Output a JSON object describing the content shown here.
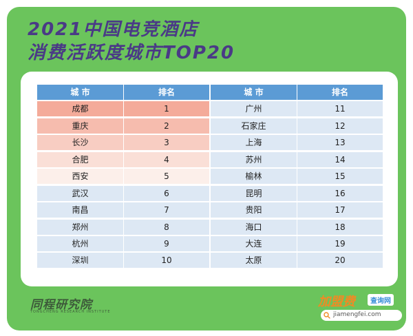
{
  "title": {
    "line1": "2021中国电竞酒店",
    "line2": "消费活跃度城市TOP20"
  },
  "table": {
    "headers": {
      "city": "城 市",
      "rank": "排名"
    },
    "left": [
      {
        "city": "成都",
        "rank": "1"
      },
      {
        "city": "重庆",
        "rank": "2"
      },
      {
        "city": "长沙",
        "rank": "3"
      },
      {
        "city": "合肥",
        "rank": "4"
      },
      {
        "city": "西安",
        "rank": "5"
      },
      {
        "city": "武汉",
        "rank": "6"
      },
      {
        "city": "南昌",
        "rank": "7"
      },
      {
        "city": "郑州",
        "rank": "8"
      },
      {
        "city": "杭州",
        "rank": "9"
      },
      {
        "city": "深圳",
        "rank": "10"
      }
    ],
    "right": [
      {
        "city": "广州",
        "rank": "11"
      },
      {
        "city": "石家庄",
        "rank": "12"
      },
      {
        "city": "上海",
        "rank": "13"
      },
      {
        "city": "苏州",
        "rank": "14"
      },
      {
        "city": "榆林",
        "rank": "15"
      },
      {
        "city": "昆明",
        "rank": "16"
      },
      {
        "city": "贵阳",
        "rank": "17"
      },
      {
        "city": "海口",
        "rank": "18"
      },
      {
        "city": "大连",
        "rank": "19"
      },
      {
        "city": "太原",
        "rank": "20"
      }
    ]
  },
  "logo": {
    "name": "同程研究院",
    "subtitle": "TONGCHENG RESEARCH INSTITUTE"
  },
  "watermark": {
    "brand": "加盟费",
    "tag": "查询网",
    "url": "jiamengfei.com",
    "icon": "search-icon"
  },
  "colors": {
    "background": "#6bc45c",
    "title": "#4a3a86",
    "header": "#5b9bd5",
    "row": "#dde8f4",
    "top_row": "#f4ab9a"
  }
}
